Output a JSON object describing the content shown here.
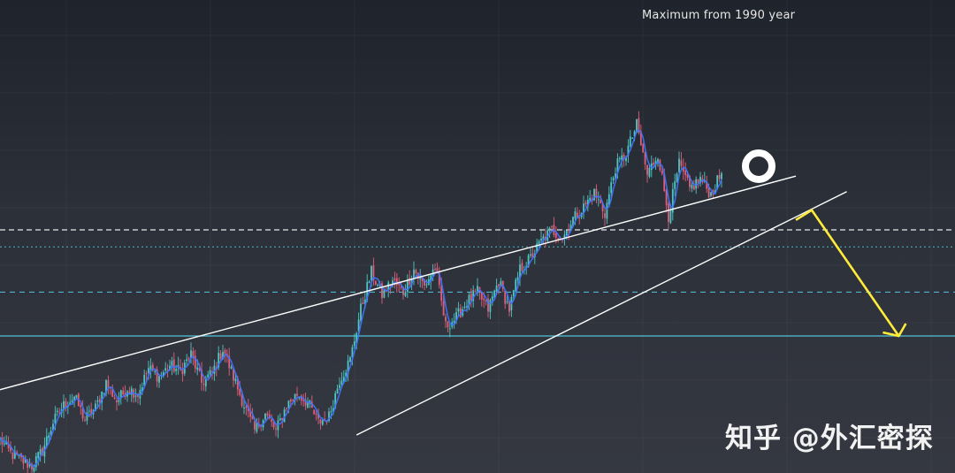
{
  "chart_data": {
    "type": "line",
    "annotation": "Maximum from 1990 year",
    "watermark": "知乎 @外汇密探",
    "grid": true,
    "colors": {
      "background": "#2a2e37",
      "candle_up": "#4ec6c4",
      "candle_down": "#e0607a",
      "moving_average": "#3f74ff",
      "trendline": "#ffffff",
      "forecast_arrow": "#ffec3a",
      "support_line": "#4fc3dc"
    },
    "series": [
      {
        "values": [
          48,
          38,
          33,
          29,
          40,
          60,
          72,
          78,
          62,
          70,
          88,
          75,
          84,
          80,
          98,
          92,
          100,
          96,
          108,
          88,
          95,
          112,
          92,
          72,
          54,
          66,
          54,
          72,
          80,
          74,
          60,
          64,
          90,
          104,
          140,
          166,
          150,
          160,
          152,
          168,
          156,
          170,
          128,
          134,
          145,
          152,
          140,
          160,
          140,
          168,
          176,
          188,
          196,
          190,
          204,
          212,
          222,
          208,
          240,
          250,
          270,
          235,
          250,
          206,
          242,
          225,
          232,
          221,
          236
        ]
      }
    ],
    "reference_levels": [
      {
        "style": "dashed",
        "value": 196
      },
      {
        "style": "dotted",
        "value": 184
      },
      {
        "style": "dashed",
        "value": 152
      },
      {
        "style": "solid",
        "value": 121
      }
    ],
    "trendlines": [
      {
        "role": "upper",
        "points": [
          [
            -2,
            79
          ],
          [
            75,
            234
          ]
        ]
      },
      {
        "role": "lower",
        "points": [
          [
            33.6,
            51
          ],
          [
            79.8,
            223
          ]
        ]
      }
    ],
    "forecast": {
      "from": [
        75,
        203
      ],
      "peak": [
        76.5,
        210
      ],
      "to": [
        84.7,
        121
      ]
    },
    "maximum_marker": [
      71.5,
      241
    ]
  }
}
